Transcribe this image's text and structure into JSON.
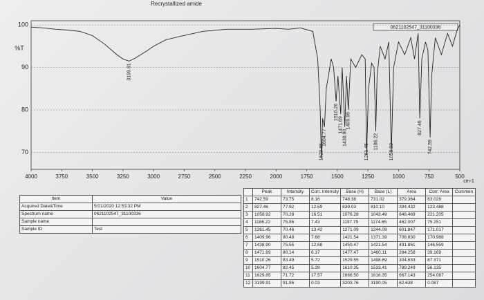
{
  "chart_data": {
    "type": "line",
    "title": "Recrystallized amide",
    "spectrum_label": "0621102547_31100336",
    "ylabel": "%T",
    "xlabel": "cm-1",
    "x": [
      4000,
      3900,
      3800,
      3700,
      3600,
      3500,
      3400,
      3300,
      3250,
      3200,
      3150,
      3050,
      3000,
      2900,
      2800,
      2600,
      2400,
      2200,
      2000,
      1900,
      1800,
      1700,
      1660,
      1640,
      1630,
      1620,
      1605,
      1590,
      1550,
      1530,
      1510,
      1495,
      1472,
      1460,
      1439,
      1425,
      1410,
      1390,
      1350,
      1300,
      1272,
      1261,
      1245,
      1220,
      1200,
      1186,
      1175,
      1150,
      1110,
      1080,
      1059,
      1040,
      1000,
      950,
      900,
      870,
      840,
      827,
      810,
      780,
      760,
      742,
      730,
      700,
      650,
      600,
      560,
      520,
      500
    ],
    "series": [
      {
        "name": "%T",
        "color": "#222222",
        "values": [
          99.5,
          99.3,
          99,
          98.8,
          98.5,
          97.5,
          95.5,
          93,
          92,
          91.5,
          92.2,
          94,
          95,
          96.5,
          97.2,
          98.5,
          99,
          99,
          99.2,
          99,
          99.3,
          98.5,
          92,
          80,
          68.5,
          78,
          76,
          85,
          92,
          90,
          82,
          88,
          79,
          90,
          76,
          88,
          80,
          92,
          90,
          93,
          92,
          69.5,
          85,
          91,
          90,
          75,
          88,
          95,
          92,
          96,
          70,
          90,
          96,
          93,
          97,
          92,
          98,
          78,
          92,
          96,
          94,
          73.5,
          88,
          97,
          93,
          98,
          95,
          99,
          100
        ]
      }
    ],
    "xlim": [
      4000,
      500
    ],
    "ylim": [
      66,
      101
    ],
    "xticks": [
      4000,
      3750,
      3500,
      3250,
      3000,
      2750,
      2500,
      2250,
      2000,
      1750,
      1500,
      1250,
      1000,
      750,
      500
    ],
    "yticks": [
      70,
      80,
      90,
      100
    ],
    "grid": true,
    "annotations": [
      {
        "x": 3199.91,
        "label": "3199.91"
      },
      {
        "x": 1629.85,
        "label": "1629.85"
      },
      {
        "x": 1604.77,
        "label": "1604.77"
      },
      {
        "x": 1510.26,
        "label": "1510.26"
      },
      {
        "x": 1471.69,
        "label": "1471.69"
      },
      {
        "x": 1438.9,
        "label": "1438.90"
      },
      {
        "x": 1409.96,
        "label": "1409.96"
      },
      {
        "x": 1261.45,
        "label": "1261.45"
      },
      {
        "x": 1186.22,
        "label": "1186.22"
      },
      {
        "x": 1058.92,
        "label": "1058.92"
      },
      {
        "x": 827.46,
        "label": "827.46"
      },
      {
        "x": 742.59,
        "label": "742.59"
      }
    ]
  },
  "meta_table": {
    "headers": [
      "Item",
      "Value"
    ],
    "rows": [
      [
        "Acquired Date&Time",
        "5/21/2020 12:53:32 PM"
      ],
      [
        "Spectrum name",
        "0621102547_31100336"
      ],
      [
        "Sample name"
      ],
      [
        "Sample ID",
        "Test"
      ]
    ]
  },
  "peak_table": {
    "headers": [
      "",
      "Peak",
      "Intensity",
      "Corr. Intensity",
      "Base (H)",
      "Base (L)",
      "Area",
      "Corr. Area",
      "Commen"
    ],
    "rows": [
      [
        "1",
        "742.59",
        "73.75",
        "8.16",
        "748.38",
        "731.02",
        "379.364",
        "63.028"
      ],
      [
        "2",
        "827.46",
        "77.92",
        "12.59",
        "839.03",
        "810.10",
        "394.432",
        "123.488"
      ],
      [
        "3",
        "1058.92",
        "70.28",
        "16.51",
        "1076.28",
        "1043.49",
        "648.469",
        "221.205"
      ],
      [
        "4",
        "1186.22",
        "75.86",
        "7.43",
        "1197.79",
        "1174.65",
        "462.007",
        "75.251"
      ],
      [
        "5",
        "1261.45",
        "70.46",
        "13.42",
        "1271.09",
        "1244.09",
        "601.847",
        "171.017"
      ],
      [
        "6",
        "1409.96",
        "80.48",
        "7.68",
        "1421.54",
        "1371.39",
        "708.830",
        "170.988"
      ],
      [
        "7",
        "1438.90",
        "75.55",
        "12.68",
        "1450.47",
        "1421.54",
        "491.861",
        "146.559"
      ],
      [
        "8",
        "1471.69",
        "80.14",
        "6.17",
        "1477.47",
        "1460.11",
        "284.258",
        "39.169"
      ],
      [
        "9",
        "1510.26",
        "83.49",
        "5.72",
        "1529.55",
        "1498.69",
        "304.633",
        "87.371"
      ],
      [
        "10",
        "1604.77",
        "82.45",
        "5.28",
        "1610.35",
        "1533.41",
        "789.249",
        "56.135"
      ],
      [
        "11",
        "1629.85",
        "71.72",
        "17.57",
        "1666.50",
        "1616.35",
        "667.143",
        "254.087"
      ],
      [
        "12",
        "3199.91",
        "91.86",
        "0.03",
        "3203.76",
        "3190.05",
        "62.638",
        "0.087"
      ]
    ]
  }
}
